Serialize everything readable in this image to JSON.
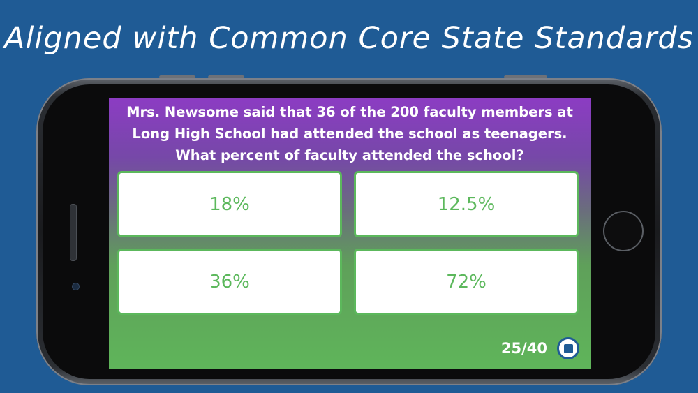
{
  "headline": "Aligned with Common Core State Standards",
  "quiz": {
    "question": "Mrs. Newsome said that 36 of the 200 faculty members at Long High School had attended the school as teenagers. What percent of faculty attended the school?",
    "answers": [
      "18%",
      "12.5%",
      "36%",
      "72%"
    ],
    "progress": "25/40"
  },
  "colors": {
    "background": "#1f5b95",
    "answer_accent": "#5cb85c",
    "question_gradient_top": "#8c3cc3",
    "gradient_bottom": "#5fb55a"
  },
  "icons": {
    "stop": "stop-icon"
  }
}
